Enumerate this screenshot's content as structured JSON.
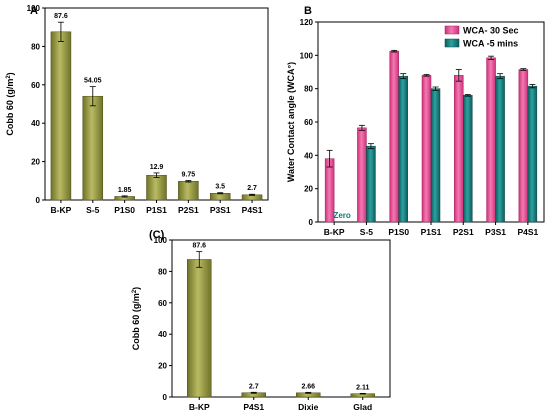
{
  "colors": {
    "olive": "#8a8c35",
    "olive_light": "#b9bb63",
    "pink": "#e9458f",
    "teal": "#147a78"
  },
  "chart_data": [
    {
      "type": "bar",
      "panel_label": "A",
      "categories": [
        "B-KP",
        "S-5",
        "P1S0",
        "P1S1",
        "P2S1",
        "P3S1",
        "P4S1"
      ],
      "values": [
        87.6,
        54.05,
        1.85,
        12.9,
        9.75,
        3.5,
        2.7
      ],
      "value_labels": [
        "87.6",
        "54.05",
        "1.85",
        "12.9",
        "9.75",
        "3.5",
        "2.7"
      ],
      "errors": [
        5,
        5,
        0.3,
        1.2,
        0.4,
        0.3,
        0.3
      ],
      "ylabel": "Cobb 60 (g/m2)",
      "ylim": [
        0,
        100
      ],
      "yticks": [
        "0",
        "20",
        "40",
        "60",
        "80",
        "100"
      ]
    },
    {
      "type": "bar",
      "panel_label": "B",
      "categories": [
        "B-KP",
        "S-5",
        "P1S0",
        "P1S1",
        "P2S1",
        "P3S1",
        "P4S1"
      ],
      "series": [
        {
          "name": "WCA- 30 Sec",
          "values": [
            38,
            56.5,
            102.5,
            88,
            88,
            98.5,
            91.5
          ],
          "errors": [
            5,
            1.5,
            0.5,
            0.5,
            3.5,
            1,
            0.5
          ]
        },
        {
          "name": "WCA -5 mins",
          "values": [
            0,
            45.5,
            87.5,
            80,
            76,
            87.5,
            81.5
          ],
          "errors": [
            0,
            1.5,
            1.5,
            1,
            0.5,
            1.5,
            1
          ]
        }
      ],
      "annotation": "Zero",
      "ylabel": "Water Contact angle (WCA°)",
      "ylim": [
        0,
        120
      ],
      "yticks": [
        "0",
        "20",
        "40",
        "60",
        "80",
        "100",
        "120"
      ],
      "legend_position": "top-right"
    },
    {
      "type": "bar",
      "panel_label": "(C)",
      "categories": [
        "B-KP",
        "P4S1",
        "Dixie",
        "Glad"
      ],
      "values": [
        87.6,
        2.7,
        2.66,
        2.11
      ],
      "value_labels": [
        "87.6",
        "2.7",
        "2.66",
        "2.11"
      ],
      "errors": [
        5,
        0.3,
        0.3,
        0.2
      ],
      "ylabel": "Cobb 60 (g/m2)",
      "ylim": [
        0,
        100
      ],
      "yticks": [
        "0",
        "20",
        "40",
        "60",
        "80",
        "100"
      ]
    }
  ]
}
